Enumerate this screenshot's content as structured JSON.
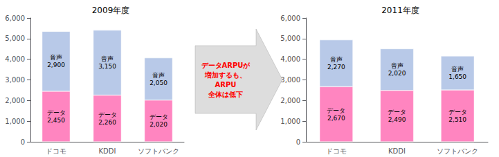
{
  "chart_data": [
    {
      "type": "bar",
      "title": "2009年度",
      "stacked": true,
      "data_labels": true,
      "grid": false,
      "categories": [
        "ドコモ",
        "KDDI",
        "ソフトバンク"
      ],
      "series": [
        {
          "name": "データ",
          "color": "#FF85C0",
          "values": [
            2450,
            2260,
            2020
          ],
          "value_labels": [
            "データ\n2,450",
            "データ\n2,260",
            "データ\n2,020"
          ]
        },
        {
          "name": "音声",
          "color": "#B8C9E8",
          "values": [
            2900,
            3150,
            2050
          ],
          "value_labels": [
            "音声\n2,900",
            "音声\n3,150",
            "音声\n2,050"
          ]
        }
      ],
      "ylim": [
        0,
        6000
      ],
      "yticks": [
        0,
        {
          "value": 1000,
          "label": "1,000"
        },
        {
          "value": 2000,
          "label": "2,000"
        },
        {
          "value": 3000,
          "label": "3,000"
        },
        {
          "value": 4000,
          "label": "4,000"
        },
        {
          "value": 5000,
          "label": "5,000"
        },
        {
          "value": 6000,
          "label": "6,000"
        }
      ],
      "annotations": [
        {
          "text": "データARPUが\n増加するも、\nARPU\n全体は低下",
          "color": "#FF0000"
        }
      ]
    },
    {
      "type": "bar",
      "title": "2011年度",
      "stacked": true,
      "data_labels": true,
      "grid": false,
      "categories": [
        "ドコモ",
        "KDDI",
        "ソフトバンク"
      ],
      "series": [
        {
          "name": "データ",
          "color": "#FF85C0",
          "values": [
            2670,
            2490,
            2510
          ],
          "value_labels": [
            "データ\n2,670",
            "データ\n2,490",
            "データ\n2,510"
          ]
        },
        {
          "name": "音声",
          "color": "#B8C9E8",
          "values": [
            2270,
            2020,
            1650
          ],
          "value_labels": [
            "音声\n2,270",
            "音声\n2,020",
            "音声\n1,650"
          ]
        }
      ],
      "ylim": [
        0,
        6000
      ],
      "yticks": [
        0,
        {
          "value": 1000,
          "label": "1,000"
        },
        {
          "value": 2000,
          "label": "2,000"
        },
        {
          "value": 3000,
          "label": "3,000"
        },
        {
          "value": 4000,
          "label": "4,000"
        },
        {
          "value": 5000,
          "label": "5,000"
        },
        {
          "value": 6000,
          "label": "6,000"
        }
      ]
    }
  ]
}
